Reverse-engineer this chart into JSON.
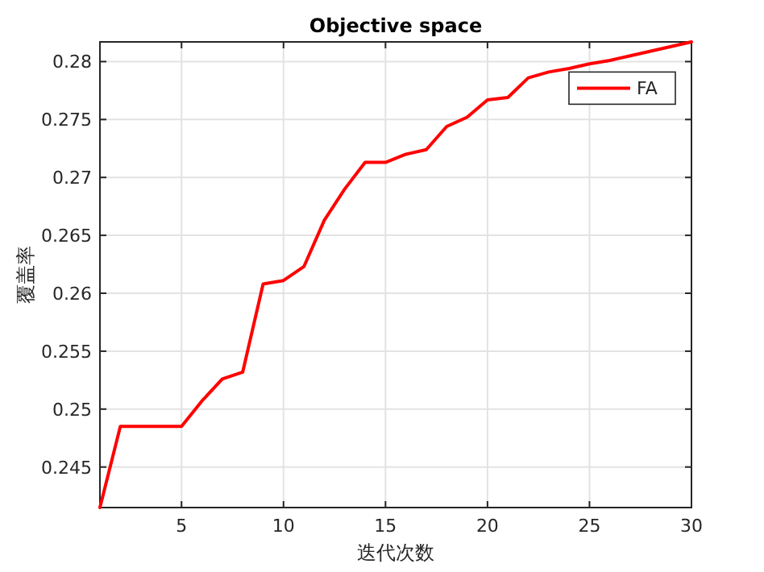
{
  "chart_data": {
    "type": "line",
    "title": "Objective space",
    "xlabel": "迭代次数",
    "ylabel": "覆盖率",
    "x": [
      1,
      2,
      3,
      4,
      5,
      6,
      7,
      8,
      9,
      10,
      11,
      12,
      13,
      14,
      15,
      16,
      17,
      18,
      19,
      20,
      21,
      22,
      23,
      24,
      25,
      26,
      27,
      28,
      29,
      30
    ],
    "series": [
      {
        "name": "FA",
        "color": "#ff0000",
        "values": [
          0.2415,
          0.2485,
          0.2485,
          0.2485,
          0.2485,
          0.2507,
          0.2526,
          0.2532,
          0.2608,
          0.2611,
          0.2623,
          0.2663,
          0.269,
          0.2713,
          0.2713,
          0.272,
          0.2724,
          0.2744,
          0.2752,
          0.2767,
          0.2769,
          0.2786,
          0.2791,
          0.2794,
          0.2798,
          0.2801,
          0.2805,
          0.2809,
          0.2813,
          0.2817
        ]
      }
    ],
    "xlim": [
      1,
      30
    ],
    "ylim": [
      0.2415,
      0.2817
    ],
    "xticks": [
      5,
      10,
      15,
      20,
      25,
      30
    ],
    "yticks": [
      0.245,
      0.25,
      0.255,
      0.26,
      0.265,
      0.27,
      0.275,
      0.28
    ],
    "grid": true,
    "legend": "top right",
    "marker": "none",
    "line_style": "solid"
  }
}
